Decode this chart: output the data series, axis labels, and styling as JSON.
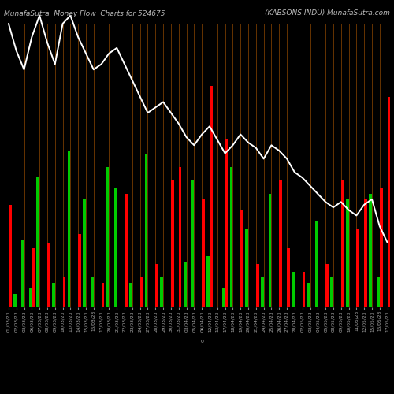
{
  "title_left": "MunafaSutra  Money Flow  Charts for 524675",
  "title_right": "(KABSONS INDU) MunafaSutra.com",
  "bg_color": "#000000",
  "grid_color": "#8B4500",
  "line_color": "#ffffff",
  "categories": [
    "01/03/23",
    "02/03/23",
    "03/03/23",
    "06/03/23",
    "07/03/23",
    "08/03/23",
    "09/03/23",
    "10/03/23",
    "13/03/23",
    "14/03/23",
    "15/03/23",
    "16/03/23",
    "17/03/23",
    "20/03/23",
    "21/03/23",
    "22/03/23",
    "23/03/23",
    "24/03/23",
    "27/03/23",
    "28/03/23",
    "29/03/23",
    "30/03/23",
    "31/03/23",
    "03/04/23",
    "05/04/23",
    "06/04/23",
    "12/04/23",
    "13/04/23",
    "17/04/23",
    "18/04/23",
    "19/04/23",
    "20/04/23",
    "21/04/23",
    "24/04/23",
    "25/04/23",
    "26/04/23",
    "27/04/23",
    "28/04/23",
    "02/05/23",
    "03/05/23",
    "04/05/23",
    "05/05/23",
    "08/05/23",
    "09/05/23",
    "10/05/23",
    "11/05/23",
    "12/05/23",
    "15/05/23",
    "16/05/23",
    "17/05/23"
  ],
  "green_bars": [
    0,
    5,
    25,
    7,
    48,
    0,
    9,
    0,
    58,
    0,
    40,
    11,
    0,
    52,
    44,
    0,
    9,
    0,
    57,
    0,
    11,
    0,
    0,
    17,
    47,
    0,
    19,
    0,
    7,
    52,
    0,
    29,
    0,
    11,
    42,
    0,
    0,
    13,
    0,
    9,
    32,
    0,
    11,
    0,
    40,
    0,
    0,
    42,
    11,
    0
  ],
  "red_bars": [
    38,
    0,
    0,
    22,
    0,
    24,
    0,
    11,
    0,
    27,
    0,
    0,
    9,
    0,
    0,
    42,
    0,
    11,
    0,
    16,
    0,
    47,
    52,
    0,
    0,
    40,
    82,
    0,
    62,
    0,
    36,
    0,
    16,
    0,
    0,
    47,
    22,
    0,
    13,
    0,
    0,
    16,
    0,
    47,
    0,
    29,
    40,
    0,
    44,
    78
  ],
  "line_values": [
    105,
    95,
    88,
    100,
    108,
    98,
    90,
    105,
    108,
    100,
    94,
    88,
    90,
    94,
    96,
    90,
    84,
    78,
    72,
    74,
    76,
    72,
    68,
    63,
    60,
    64,
    67,
    62,
    57,
    60,
    64,
    61,
    59,
    55,
    60,
    58,
    55,
    50,
    48,
    45,
    42,
    39,
    37,
    39,
    36,
    34,
    38,
    40,
    30,
    24
  ],
  "title_fontsize": 6.5,
  "tick_fontsize": 4.2,
  "bar_width": 0.38,
  "ylim": [
    0,
    105
  ]
}
